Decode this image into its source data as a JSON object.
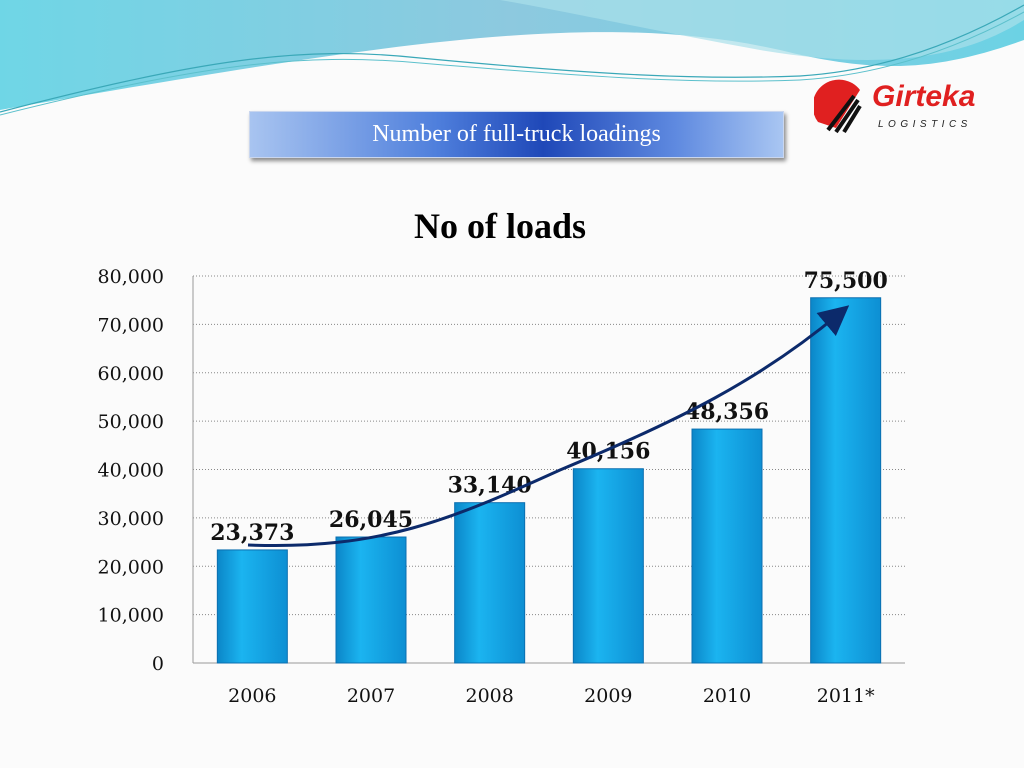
{
  "slide": {
    "header_title": "Number of full-truck loadings",
    "logo": {
      "name": "Girteka",
      "tagline": "LOGISTICS"
    },
    "colors": {
      "bar": "#12a6e6",
      "bar_dark": "#0b6fb0",
      "arrow": "#0c2a6b",
      "logo_red": "#e02020"
    }
  },
  "chart_data": {
    "type": "bar",
    "title": "No of loads",
    "categories": [
      "2006",
      "2007",
      "2008",
      "2009",
      "2010",
      "2011*"
    ],
    "values": [
      23373,
      26045,
      33140,
      40156,
      48356,
      75500
    ],
    "data_labels": [
      "23,373",
      "26,045",
      "33,140",
      "40,156",
      "48,356",
      "75,500"
    ],
    "yticks": [
      "0",
      "10,000",
      "20,000",
      "30,000",
      "40,000",
      "50,000",
      "60,000",
      "70,000",
      "80,000"
    ],
    "ylim": [
      0,
      80000
    ],
    "grid": true,
    "annotations": [
      "upward trend arrow from 2006 to 2011*"
    ]
  }
}
